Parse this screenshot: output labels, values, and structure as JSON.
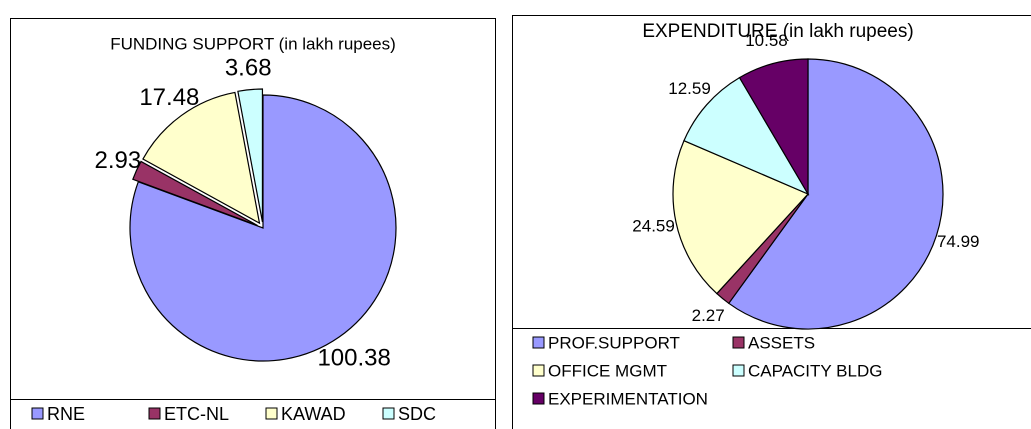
{
  "chart_data": [
    {
      "type": "pie",
      "title": "FUNDING SUPPORT (in lakh rupees)",
      "categories": [
        "RNE",
        "ETC-NL",
        "KAWAD",
        "SDC"
      ],
      "values": [
        100.38,
        2.93,
        17.48,
        3.68
      ],
      "colors": [
        "#9999ff",
        "#993366",
        "#ffffcc",
        "#ccffff"
      ],
      "legend": "bottom"
    },
    {
      "type": "pie",
      "title": "EXPENDITURE (in lakh rupees)",
      "categories": [
        "PROF.SUPPORT",
        "ASSETS",
        "OFFICE MGMT",
        "CAPACITY BLDG",
        "EXPERIMENTATION"
      ],
      "values": [
        74.99,
        2.27,
        24.59,
        12.59,
        10.58
      ],
      "colors": [
        "#9999ff",
        "#993366",
        "#ffffcc",
        "#ccffff",
        "#660066"
      ],
      "legend": "bottom"
    }
  ]
}
